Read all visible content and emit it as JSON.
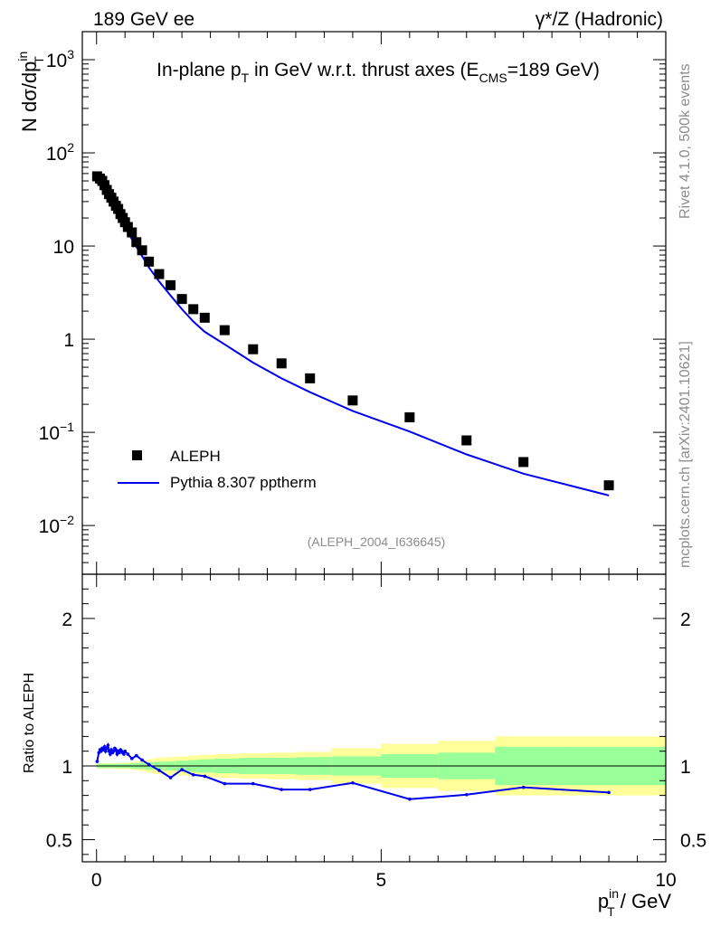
{
  "header": {
    "left": "189 GeV ee",
    "right": "γ*/Z (Hadronic)"
  },
  "side_labels": {
    "rivet": "Rivet 4.1.0,  500k events",
    "mcplots": "mcplots.cern.ch [arXiv:2401.10621]"
  },
  "colors": {
    "data": "#000000",
    "mc": "#0000ee",
    "band_inner": "#99ff99",
    "band_outer": "#ffff99"
  },
  "chart_data": {
    "type": "scatter",
    "title": "In-plane p_T in GeV w.r.t. thrust axes (E_CMS=189 GeV)",
    "title_parts": {
      "a": "In-plane p",
      "a_sub": "T",
      "b": " in GeV w.r.t. thrust axes (E",
      "b_sub": "CMS",
      "c": "=189 GeV)"
    },
    "xlabel": "p_T^in / GeV",
    "xlabel_parts": {
      "main": "p",
      "sup": "in",
      "sub": "T",
      "rest": " / GeV"
    },
    "ylabel": "N  dσ/dp_T^in",
    "ylabel_parts": {
      "main": "N  dσ/dp",
      "sup": "in",
      "sub": "T"
    },
    "ratio_ylabel": "Ratio to ALEPH",
    "watermark": "(ALEPH_2004_I636645)",
    "xlim": [
      -0.25,
      10
    ],
    "ylim": [
      0.003,
      2000
    ],
    "yscale": "log",
    "ratio_ylim": [
      0.35,
      2.3
    ],
    "x_ticks": [
      "0",
      "5",
      "10"
    ],
    "y_ticks_main": [
      {
        "pre": "10",
        "sup": "−2"
      },
      {
        "pre": "10",
        "sup": "−1"
      },
      {
        "pre": "1",
        "sup": ""
      },
      {
        "pre": "10",
        "sup": ""
      },
      {
        "pre": "10",
        "sup": "2"
      },
      {
        "pre": "10",
        "sup": "3"
      }
    ],
    "y_ticks_ratio": [
      "0.5",
      "1",
      "2"
    ],
    "legend": {
      "placement": "bottom-left",
      "entries": [
        "ALEPH",
        "Pythia 8.307 pptherm"
      ]
    },
    "series": [
      {
        "name": "ALEPH",
        "marker": "square",
        "x": [
          0.01,
          0.06,
          0.1,
          0.14,
          0.18,
          0.22,
          0.26,
          0.3,
          0.34,
          0.38,
          0.42,
          0.46,
          0.5,
          0.55,
          0.62,
          0.7,
          0.8,
          0.92,
          1.1,
          1.3,
          1.5,
          1.7,
          1.9,
          2.25,
          2.75,
          3.25,
          3.75,
          4.5,
          5.5,
          6.5,
          7.5,
          9.0
        ],
        "y": [
          56,
          53,
          50,
          45,
          40,
          36,
          33,
          30,
          27,
          25,
          22,
          20,
          18,
          16,
          14,
          11,
          9.0,
          6.8,
          5.0,
          3.8,
          2.7,
          2.1,
          1.7,
          1.25,
          0.78,
          0.55,
          0.38,
          0.22,
          0.145,
          0.082,
          0.048,
          0.027
        ],
        "band_inner": [
          0.015,
          0.015,
          0.015,
          0.015,
          0.015,
          0.015,
          0.015,
          0.015,
          0.015,
          0.015,
          0.015,
          0.015,
          0.015,
          0.015,
          0.018,
          0.02,
          0.022,
          0.025,
          0.028,
          0.03,
          0.035,
          0.04,
          0.045,
          0.05,
          0.055,
          0.055,
          0.06,
          0.065,
          0.08,
          0.09,
          0.13,
          0.13
        ],
        "band_outer": [
          0.02,
          0.02,
          0.02,
          0.02,
          0.02,
          0.02,
          0.02,
          0.02,
          0.02,
          0.02,
          0.02,
          0.02,
          0.02,
          0.022,
          0.025,
          0.03,
          0.035,
          0.045,
          0.055,
          0.06,
          0.065,
          0.07,
          0.075,
          0.08,
          0.085,
          0.09,
          0.095,
          0.12,
          0.15,
          0.17,
          0.2,
          0.2
        ]
      },
      {
        "name": "Pythia 8.307 pptherm",
        "line": true,
        "x": [
          0.01,
          0.04,
          0.06,
          0.08,
          0.1,
          0.12,
          0.14,
          0.16,
          0.18,
          0.2,
          0.22,
          0.24,
          0.26,
          0.28,
          0.3,
          0.32,
          0.34,
          0.36,
          0.38,
          0.4,
          0.42,
          0.44,
          0.46,
          0.48,
          0.5,
          0.55,
          0.62,
          0.7,
          0.8,
          0.92,
          1.1,
          1.3,
          1.5,
          1.7,
          1.9,
          2.25,
          2.75,
          3.25,
          3.75,
          4.5,
          5.5,
          6.5,
          7.5,
          9.0
        ],
        "y": [
          57.7,
          59,
          58,
          56,
          53.5,
          51,
          48.5,
          46,
          43.5,
          41,
          38.5,
          36,
          33.5,
          31.5,
          29.5,
          27.5,
          26,
          24.5,
          23,
          21.5,
          20,
          19,
          17.8,
          16.8,
          15.8,
          14,
          11.9,
          9.8,
          7.8,
          5.9,
          4.15,
          2.95,
          2.1,
          1.55,
          1.2,
          0.88,
          0.56,
          0.38,
          0.27,
          0.17,
          0.102,
          0.058,
          0.036,
          0.021
        ],
        "ratio": [
          1.03,
          1.09,
          1.11,
          1.1,
          1.12,
          1.11,
          1.13,
          1.1,
          1.12,
          1.14,
          1.1,
          1.08,
          1.11,
          1.09,
          1.1,
          1.12,
          1.11,
          1.08,
          1.1,
          1.09,
          1.11,
          1.1,
          1.09,
          1.08,
          1.1,
          1.08,
          1.05,
          1.07,
          1.04,
          1.01,
          0.97,
          0.92,
          0.975,
          0.94,
          0.93,
          0.88,
          0.88,
          0.84,
          0.84,
          0.885,
          0.775,
          0.805,
          0.855,
          0.82
        ]
      }
    ]
  }
}
